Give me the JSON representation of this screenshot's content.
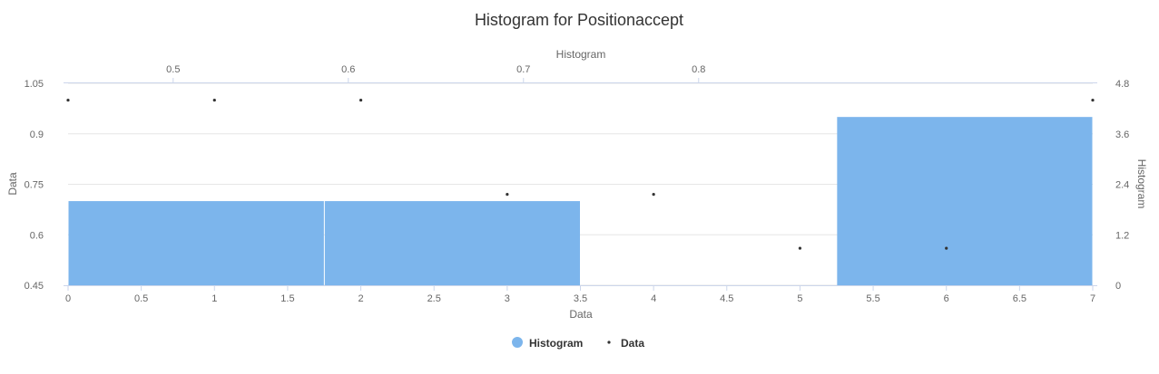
{
  "chart_data": {
    "type": "bar",
    "title": "Histogram for Positionaccept",
    "x_axis_bottom": {
      "label": "Data",
      "range": [
        0,
        7
      ],
      "ticks": [
        "0",
        "0.5",
        "1",
        "1.5",
        "2",
        "2.5",
        "3",
        "3.5",
        "4",
        "4.5",
        "5",
        "5.5",
        "6",
        "6.5",
        "7"
      ]
    },
    "x_axis_top": {
      "label": "Histogram",
      "range": [
        0.44,
        1.025
      ],
      "ticks": [
        "0.5",
        "0.6",
        "0.7",
        "0.8"
      ]
    },
    "y_axis_left": {
      "label": "Data",
      "range": [
        0.45,
        1.05
      ],
      "ticks": [
        "0.45",
        "0.6",
        "0.75",
        "0.9",
        "1.05"
      ]
    },
    "y_axis_right": {
      "label": "Histogram",
      "range": [
        0,
        4.8
      ],
      "ticks": [
        "0",
        "1.2",
        "2.4",
        "3.6",
        "4.8"
      ]
    },
    "series": [
      {
        "name": "Histogram",
        "type": "column",
        "color": "#7cb5ec",
        "bins": [
          {
            "x0": 0.44,
            "x1": 0.5863,
            "count": 2
          },
          {
            "x0": 0.5863,
            "x1": 0.7325,
            "count": 2
          },
          {
            "x0": 0.7325,
            "x1": 0.8788,
            "count": 0
          },
          {
            "x0": 0.8788,
            "x1": 1.025,
            "count": 4
          }
        ]
      },
      {
        "name": "Data",
        "type": "scatter",
        "color": "#333333",
        "points": [
          {
            "x": 0,
            "y": 1
          },
          {
            "x": 1,
            "y": 1
          },
          {
            "x": 2,
            "y": 1
          },
          {
            "x": 3,
            "y": 0.72
          },
          {
            "x": 4,
            "y": 0.72
          },
          {
            "x": 5,
            "y": 0.56
          },
          {
            "x": 6,
            "y": 0.56
          },
          {
            "x": 7,
            "y": 1
          }
        ]
      }
    ],
    "legend": {
      "position": "bottom-center",
      "items": [
        {
          "label": "Histogram",
          "symbol": "circle",
          "color": "#7cb5ec"
        },
        {
          "label": "Data",
          "symbol": "dot",
          "color": "#333333"
        }
      ]
    },
    "grid": true
  }
}
